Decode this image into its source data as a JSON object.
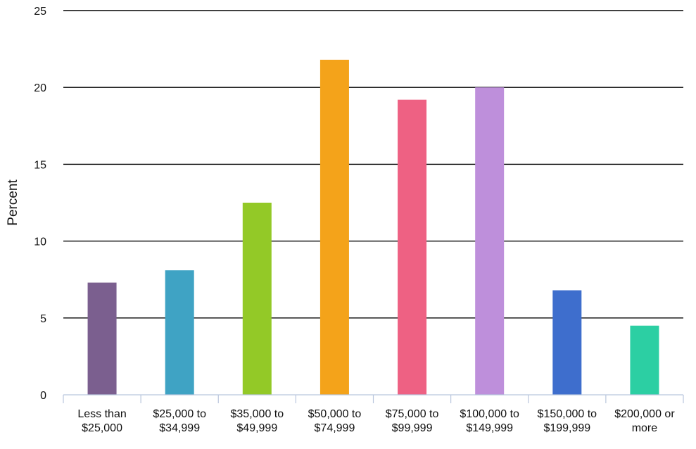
{
  "chart_data": {
    "type": "bar",
    "title": "",
    "xlabel": "",
    "ylabel": "Percent",
    "ylim": [
      0,
      25
    ],
    "yticks": [
      "0",
      "5",
      "10",
      "15",
      "20",
      "25"
    ],
    "grid": true,
    "legend": "none",
    "categories": [
      [
        "Less than",
        "$25,000"
      ],
      [
        "$25,000 to",
        "$34,999"
      ],
      [
        "$35,000 to",
        "$49,999"
      ],
      [
        "$50,000 to",
        "$74,999"
      ],
      [
        "$75,000 to",
        "$99,999"
      ],
      [
        "$100,000 to",
        "$149,999"
      ],
      [
        "$150,000 to",
        "$199,999"
      ],
      [
        "$200,000 or",
        "more"
      ]
    ],
    "values": [
      7.3,
      8.1,
      12.5,
      21.8,
      19.2,
      20.0,
      6.8,
      4.5
    ],
    "colors": [
      "#7b5f8f",
      "#3fa3c4",
      "#93c927",
      "#f4a31a",
      "#ee6183",
      "#be8fdb",
      "#3e6ecd",
      "#2ccfa3"
    ]
  }
}
